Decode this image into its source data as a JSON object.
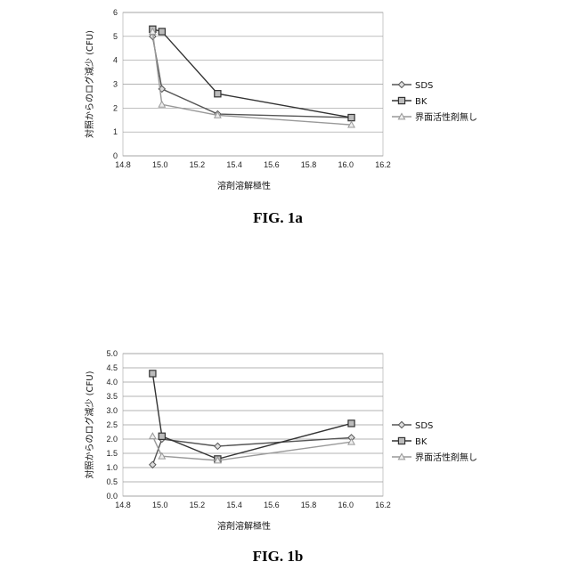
{
  "chart_data": [
    {
      "type": "line",
      "caption": "FIG. 1a",
      "xlabel": "溶剤溶解極性",
      "ylabel": "対照からのログ減少 (CFU)",
      "xlim": [
        14.8,
        16.2
      ],
      "ylim": [
        0,
        6
      ],
      "xticks": [
        14.8,
        15.0,
        15.2,
        15.4,
        15.6,
        15.8,
        16.0,
        16.2
      ],
      "xtick_labels": [
        "14.8",
        "15.0",
        "15.2",
        "15.4",
        "15.6",
        "15.8",
        "16.0",
        "16.2"
      ],
      "yticks": [
        0,
        1,
        2,
        3,
        4,
        5,
        6
      ],
      "ytick_labels": [
        "0",
        "1",
        "2",
        "3",
        "4",
        "5",
        "6"
      ],
      "grid": true,
      "legend_position": "right",
      "series": [
        {
          "name": "SDS",
          "marker": "diamond",
          "color": "#555555",
          "x": [
            14.96,
            15.01,
            15.31,
            16.03
          ],
          "y": [
            5.0,
            2.8,
            1.75,
            1.6
          ]
        },
        {
          "name": "BK",
          "marker": "square",
          "color": "#333333",
          "x": [
            14.96,
            15.01,
            15.31,
            16.03
          ],
          "y": [
            5.3,
            5.2,
            2.6,
            1.6
          ]
        },
        {
          "name": "界面活性剤無し",
          "marker": "triangle",
          "color": "#999999",
          "x": [
            14.96,
            15.01,
            15.31,
            16.03
          ],
          "y": [
            5.2,
            2.15,
            1.7,
            1.3
          ]
        }
      ]
    },
    {
      "type": "line",
      "caption": "FIG. 1b",
      "xlabel": "溶剤溶解極性",
      "ylabel": "対照からのログ減少 (CFU)",
      "xlim": [
        14.8,
        16.2
      ],
      "ylim": [
        0,
        5
      ],
      "xticks": [
        14.8,
        15.0,
        15.2,
        15.4,
        15.6,
        15.8,
        16.0,
        16.2
      ],
      "xtick_labels": [
        "14.8",
        "15.0",
        "15.2",
        "15.4",
        "15.6",
        "15.8",
        "16.0",
        "16.2"
      ],
      "yticks": [
        0,
        0.5,
        1,
        1.5,
        2,
        2.5,
        3,
        3.5,
        4,
        4.5,
        5
      ],
      "ytick_labels": [
        "0.0",
        "0.5",
        "1.0",
        "1.5",
        "2.0",
        "2.5",
        "3.0",
        "3.5",
        "4.0",
        "4.5",
        "5.0"
      ],
      "grid": true,
      "legend_position": "right",
      "series": [
        {
          "name": "SDS",
          "marker": "diamond",
          "color": "#555555",
          "x": [
            14.96,
            15.01,
            15.31,
            16.03
          ],
          "y": [
            1.1,
            2.0,
            1.75,
            2.05
          ]
        },
        {
          "name": "BK",
          "marker": "square",
          "color": "#333333",
          "x": [
            14.96,
            15.01,
            15.31,
            16.03
          ],
          "y": [
            4.3,
            2.1,
            1.3,
            2.55
          ]
        },
        {
          "name": "界面活性剤無し",
          "marker": "triangle",
          "color": "#999999",
          "x": [
            14.96,
            15.01,
            15.31,
            16.03
          ],
          "y": [
            2.1,
            1.4,
            1.25,
            1.9
          ]
        }
      ]
    }
  ]
}
